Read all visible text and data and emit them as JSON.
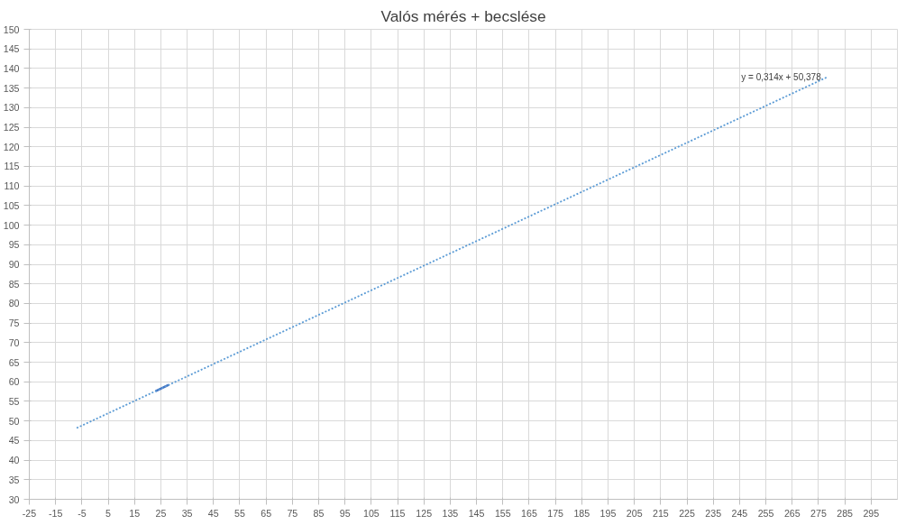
{
  "chart_data": {
    "type": "line",
    "title": "Valós mérés + becslése",
    "series": [
      {
        "color": "#4472c4",
        "line_style": "solid",
        "x": [
          23,
          28
        ],
        "values": [
          57.6,
          59.2
        ]
      },
      {
        "color": "#5b9bd5",
        "line_style": "dotted",
        "x": [
          -7,
          278
        ],
        "values": [
          48.2,
          137.7
        ]
      }
    ],
    "annotations": [
      {
        "text": "y = 0,314x + 50,378",
        "x": 278,
        "y": 137.7
      }
    ],
    "xlim": [
      -25,
      305
    ],
    "ylim": [
      30,
      150
    ],
    "xticks": [
      -25,
      -15,
      -5,
      5,
      15,
      25,
      35,
      45,
      55,
      65,
      75,
      85,
      95,
      105,
      115,
      125,
      135,
      145,
      155,
      165,
      175,
      185,
      195,
      205,
      215,
      225,
      235,
      245,
      255,
      265,
      275,
      285,
      295
    ],
    "yticks": [
      30,
      35,
      40,
      45,
      50,
      55,
      60,
      65,
      70,
      75,
      80,
      85,
      90,
      95,
      100,
      105,
      110,
      115,
      120,
      125,
      130,
      135,
      140,
      145,
      150
    ],
    "grid": true,
    "marker": "none"
  }
}
